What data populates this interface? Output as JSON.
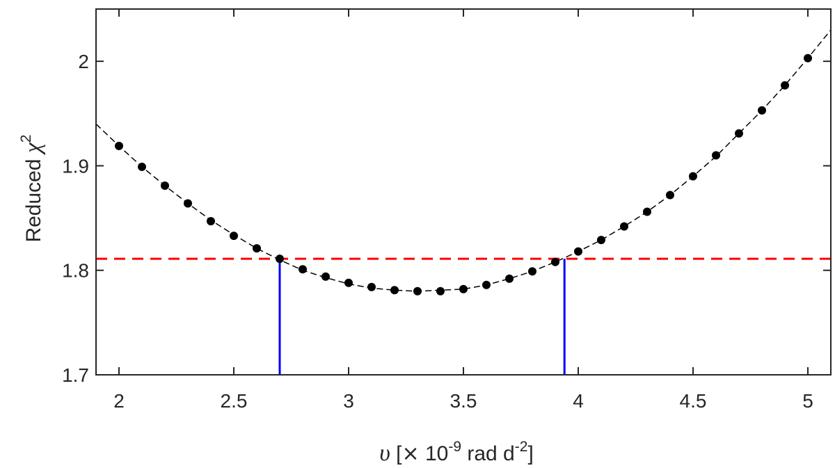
{
  "chart_data": {
    "type": "scatter",
    "xlabel": {
      "symbol": "υ",
      "open": " [",
      "times": "×",
      "base": " 10",
      "exp": "-9",
      "unit": " rad d",
      "unit_exp": "-2",
      "close": "]"
    },
    "ylabel": {
      "text": "Reduced ",
      "symbol": "χ",
      "exp": "2"
    },
    "xlim": [
      1.9,
      5.1
    ],
    "ylim": [
      1.7,
      2.05
    ],
    "xticks": [
      2,
      2.5,
      3,
      3.5,
      4,
      4.5,
      5
    ],
    "xtick_labels": [
      "2",
      "2.5",
      "3",
      "3.5",
      "4",
      "4.5",
      "5"
    ],
    "yticks": [
      1.7,
      1.8,
      1.9,
      2.0
    ],
    "ytick_labels": [
      "1.7",
      "1.8",
      "1.9",
      "2"
    ],
    "grid": false,
    "series": [
      {
        "kind": "points",
        "color": "#000000",
        "x": [
          2.0,
          2.1,
          2.2,
          2.3,
          2.4,
          2.5,
          2.6,
          2.7,
          2.8,
          2.9,
          3.0,
          3.1,
          3.2,
          3.3,
          3.4,
          3.5,
          3.6,
          3.7,
          3.8,
          3.9,
          4.0,
          4.1,
          4.2,
          4.3,
          4.4,
          4.5,
          4.6,
          4.7,
          4.8,
          4.9,
          5.0
        ],
        "y": [
          1.919,
          1.899,
          1.881,
          1.864,
          1.847,
          1.833,
          1.821,
          1.811,
          1.801,
          1.794,
          1.788,
          1.784,
          1.781,
          1.78,
          1.78,
          1.782,
          1.786,
          1.792,
          1.799,
          1.808,
          1.818,
          1.829,
          1.842,
          1.856,
          1.872,
          1.89,
          1.91,
          1.931,
          1.953,
          1.977,
          2.003
        ]
      },
      {
        "kind": "fit-curve",
        "style": "dashed",
        "color": "#000000",
        "x": [
          1.9,
          2.0,
          2.1,
          2.2,
          2.3,
          2.4,
          2.5,
          2.6,
          2.7,
          2.8,
          2.9,
          3.0,
          3.1,
          3.2,
          3.3,
          3.4,
          3.5,
          3.6,
          3.7,
          3.8,
          3.9,
          4.0,
          4.1,
          4.2,
          4.3,
          4.4,
          4.5,
          4.6,
          4.7,
          4.8,
          4.9,
          5.0,
          5.1
        ],
        "y": [
          1.94,
          1.919,
          1.899,
          1.881,
          1.864,
          1.848,
          1.834,
          1.821,
          1.81,
          1.8,
          1.793,
          1.787,
          1.783,
          1.781,
          1.78,
          1.781,
          1.782,
          1.786,
          1.792,
          1.799,
          1.808,
          1.818,
          1.829,
          1.842,
          1.856,
          1.872,
          1.89,
          1.909,
          1.931,
          1.953,
          1.977,
          2.003,
          2.03
        ]
      }
    ],
    "threshold": {
      "y": 1.811,
      "style": "dashed",
      "color": "#ff0000"
    },
    "bounds": {
      "x": [
        2.7,
        3.94
      ],
      "y": 1.811,
      "color": "#0000ff"
    }
  }
}
